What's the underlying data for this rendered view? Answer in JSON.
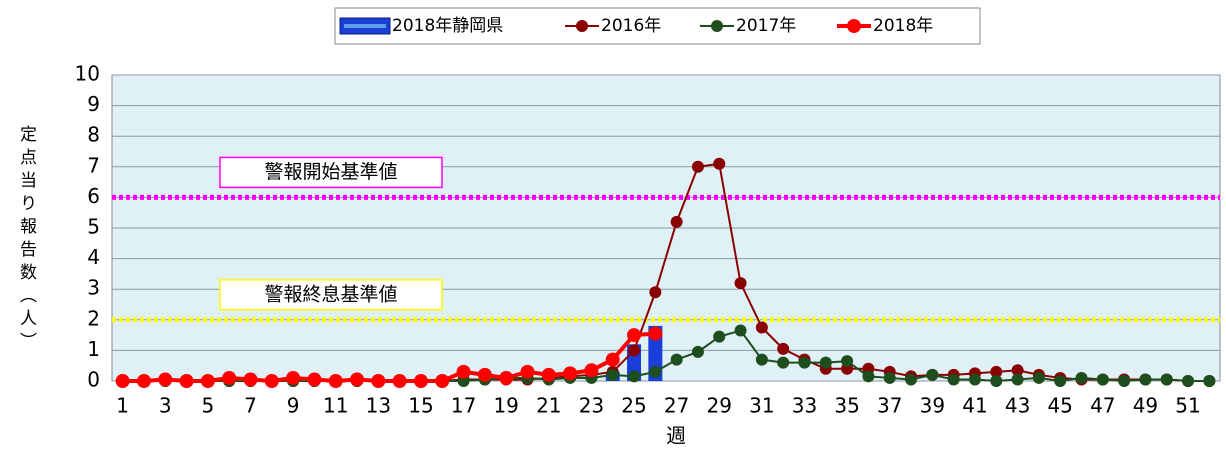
{
  "chart_data": {
    "type": "bar-line",
    "categories": [
      1,
      null,
      3,
      null,
      5,
      null,
      7,
      null,
      9,
      null,
      11,
      null,
      13,
      null,
      15,
      null,
      17,
      null,
      19,
      null,
      21,
      null,
      23,
      null,
      25,
      null,
      27,
      null,
      29,
      null,
      31,
      null,
      33,
      null,
      35,
      null,
      37,
      null,
      39,
      null,
      41,
      null,
      43,
      null,
      45,
      null,
      47,
      null,
      49,
      null,
      51,
      null
    ],
    "series": [
      {
        "name": "2018年静岡県",
        "type": "bar",
        "color": "#1a3fd6",
        "values": [
          0,
          0,
          0,
          0,
          0,
          0,
          0,
          0,
          0,
          0,
          0,
          0,
          0,
          0,
          0,
          0,
          0,
          0,
          0,
          0,
          0,
          0,
          0,
          0.3,
          1.2,
          1.8,
          null,
          null,
          null,
          null,
          null,
          null,
          null,
          null,
          null,
          null,
          null,
          null,
          null,
          null,
          null,
          null,
          null,
          null,
          null,
          null,
          null,
          null,
          null,
          null,
          null,
          null
        ]
      },
      {
        "name": "2016年",
        "type": "line",
        "color": "#8b0000",
        "values": [
          0,
          0,
          0,
          0,
          0,
          0,
          0,
          0,
          0,
          0,
          0,
          0,
          0,
          0,
          0,
          0,
          0.05,
          0.05,
          0.05,
          0.05,
          0.1,
          0.15,
          0.2,
          0.3,
          1.0,
          2.9,
          5.2,
          7.0,
          7.1,
          3.2,
          1.75,
          1.05,
          0.7,
          0.4,
          0.4,
          0.4,
          0.3,
          0.15,
          0.2,
          0.2,
          0.25,
          0.3,
          0.35,
          0.2,
          0.1,
          0.05,
          0.05,
          0.05,
          0.05,
          0.05,
          0,
          0
        ]
      },
      {
        "name": "2017年",
        "type": "line",
        "color": "#1e4d1e",
        "values": [
          0,
          0,
          0,
          0,
          0,
          0,
          0,
          0,
          0,
          0,
          0,
          0,
          0,
          0,
          0,
          0,
          0,
          0.05,
          0.1,
          0.1,
          0.05,
          0.1,
          0.1,
          0.2,
          0.15,
          0.3,
          0.7,
          0.95,
          1.45,
          1.65,
          0.7,
          0.6,
          0.6,
          0.6,
          0.65,
          0.15,
          0.1,
          0.05,
          0.2,
          0.05,
          0.05,
          0,
          0.05,
          0.1,
          0,
          0.1,
          0.05,
          0,
          0.05,
          0.05,
          0,
          0
        ]
      },
      {
        "name": "2018年",
        "type": "line",
        "color": "#ff0000",
        "values": [
          0,
          0,
          0.05,
          0,
          0,
          0.1,
          0.05,
          0,
          0.1,
          0.05,
          0,
          0.05,
          0,
          0,
          0,
          0,
          0.3,
          0.2,
          0.1,
          0.3,
          0.2,
          0.25,
          0.35,
          0.7,
          1.5,
          1.55,
          null,
          null,
          null,
          null,
          null,
          null,
          null,
          null,
          null,
          null,
          null,
          null,
          null,
          null,
          null,
          null,
          null,
          null,
          null,
          null,
          null,
          null,
          null,
          null,
          null,
          null
        ]
      }
    ],
    "reference_lines": [
      {
        "label": "警報開始基準値",
        "value": 6,
        "color": "#ff00ff"
      },
      {
        "label": "警報終息基準値",
        "value": 2,
        "color": "#ffff00"
      }
    ],
    "ylim": [
      0,
      10
    ],
    "yticks": [
      0,
      1,
      2,
      3,
      4,
      5,
      6,
      7,
      8,
      9,
      10
    ],
    "ylabel": "定点当り報告数（人）",
    "xlabel": "週",
    "grid": true,
    "legend": "top"
  }
}
